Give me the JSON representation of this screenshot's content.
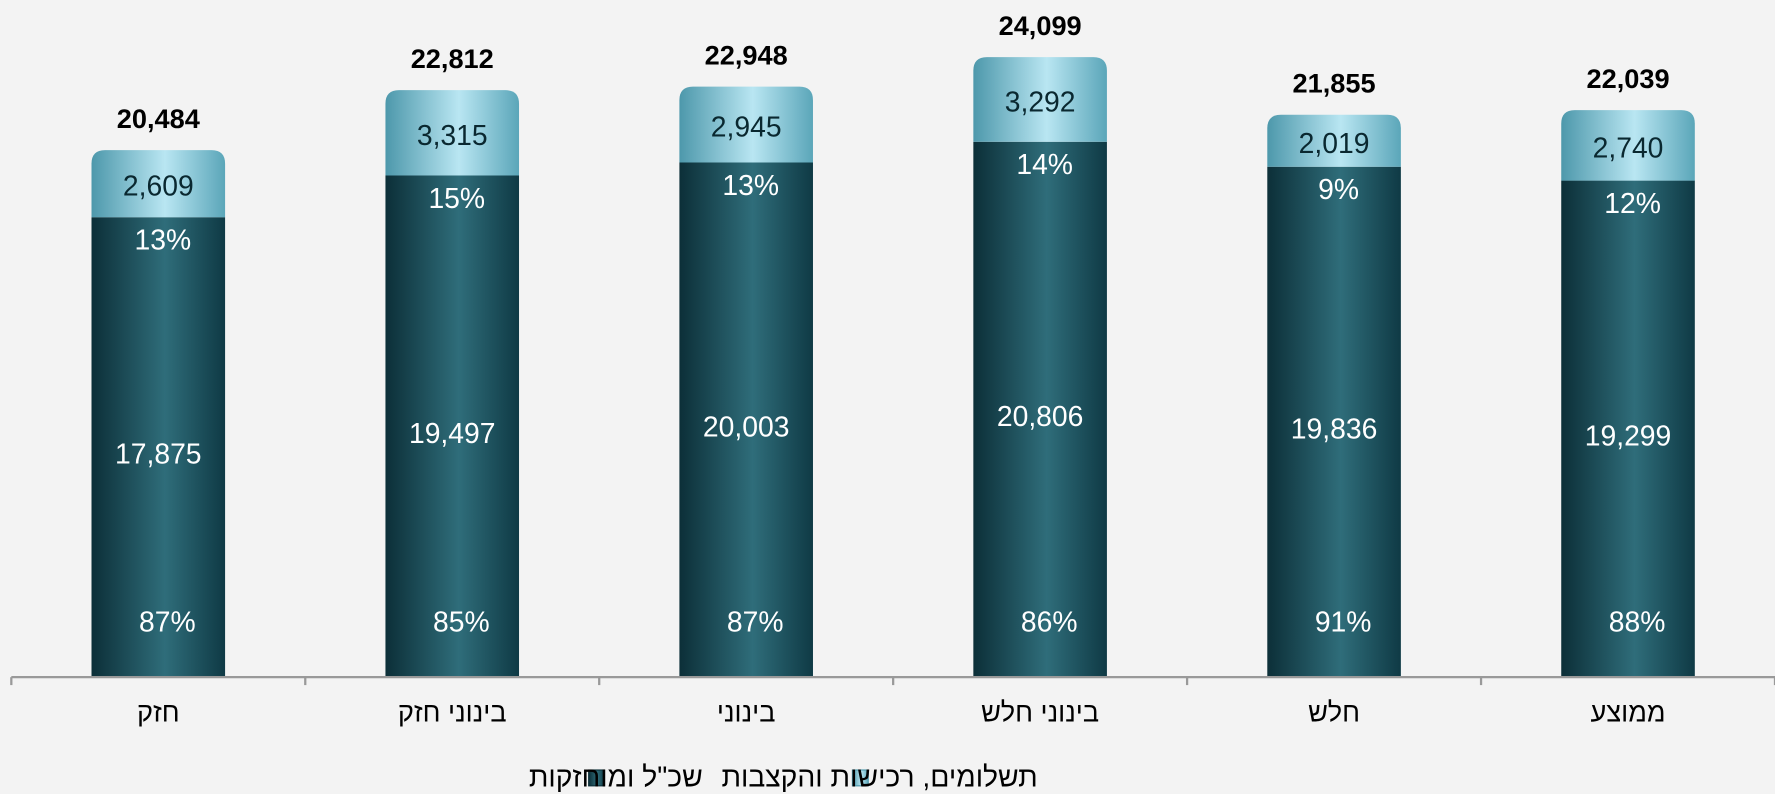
{
  "chart_data": {
    "type": "stacked_bar",
    "categories": [
      "חזק",
      "בינוני חזק",
      "בינוני",
      "בינוני חלש",
      "חלש",
      "ממוצע"
    ],
    "series": [
      {
        "name": "שכ\"ל ומוחזקות",
        "color": "#1f5966",
        "values": [
          17875,
          19497,
          20003,
          20806,
          19836,
          19299
        ],
        "value_labels": [
          "17,875",
          "19,497",
          "20,003",
          "20,806",
          "19,836",
          "19,299"
        ],
        "percents": [
          87,
          85,
          87,
          86,
          91,
          88
        ],
        "percent_labels": [
          "87%",
          "85%",
          "87%",
          "86%",
          "91%",
          "88%"
        ]
      },
      {
        "name": "תשלומים, רכישות והקצבות",
        "color": "#8fcfe0",
        "values": [
          2609,
          3315,
          2945,
          3292,
          2019,
          2740
        ],
        "value_labels": [
          "2,609",
          "3,315",
          "2,945",
          "3,292",
          "2,019",
          "2,740"
        ],
        "percents": [
          13,
          15,
          13,
          14,
          9,
          12
        ],
        "percent_labels": [
          "13%",
          "15%",
          "13%",
          "14%",
          "9%",
          "12%"
        ]
      }
    ],
    "totals": [
      20484,
      22812,
      22948,
      24099,
      21855,
      22039
    ],
    "total_labels": [
      "20,484",
      "22,812",
      "22,948",
      "24,099",
      "21,855",
      "22,039"
    ],
    "ylim": [
      0,
      26000
    ]
  }
}
